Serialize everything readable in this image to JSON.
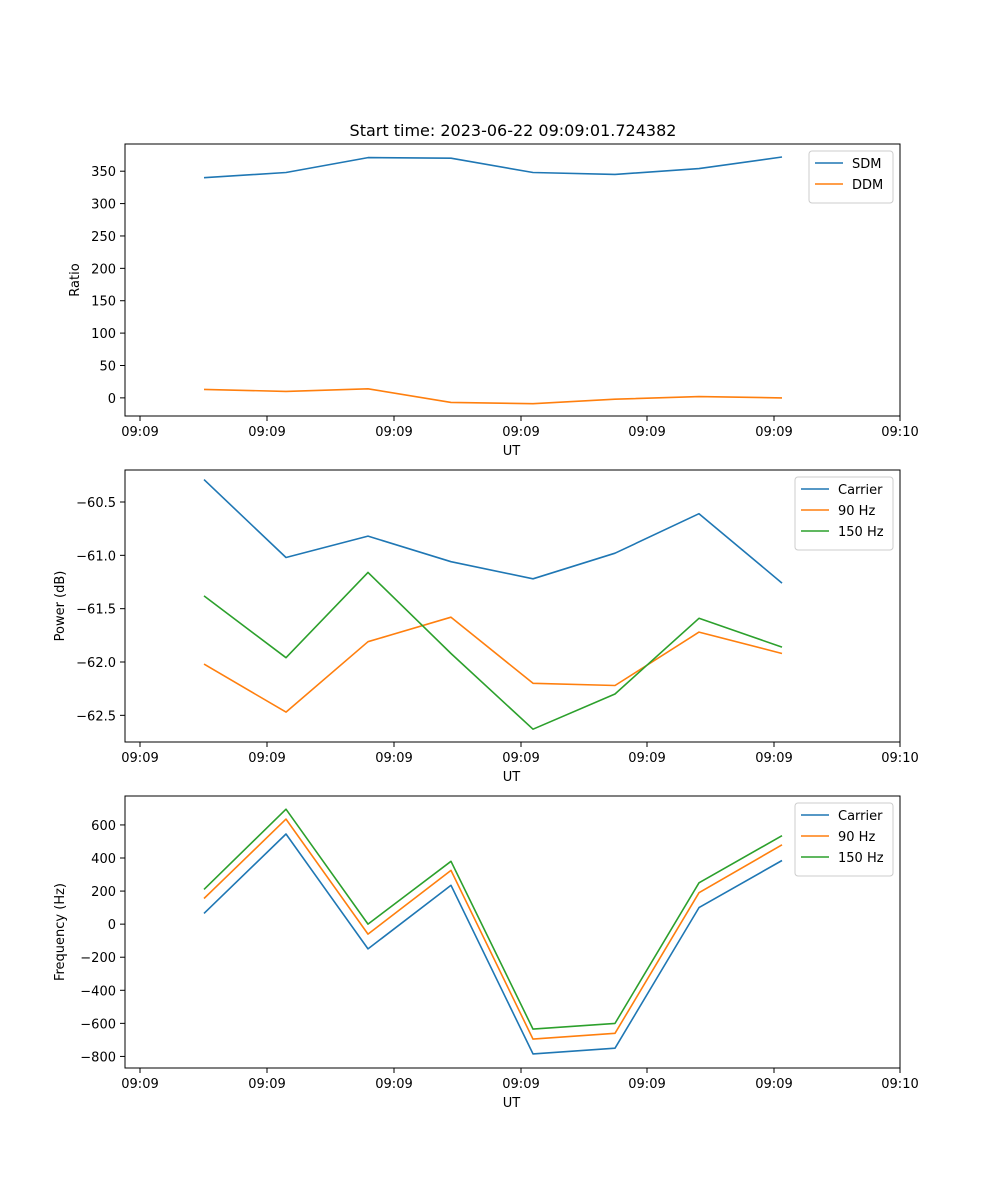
{
  "figure": {
    "title": "Start time: 2023-06-22 09:09:01.724382"
  },
  "colors": {
    "blue": "#1f77b4",
    "orange": "#ff7f0e",
    "green": "#2ca02c"
  },
  "chart_data": [
    {
      "type": "line",
      "title": "Start time: 2023-06-22 09:09:01.724382",
      "xlabel": "UT",
      "ylabel": "Ratio",
      "x_tick_labels": [
        "09:09",
        "09:09",
        "09:09",
        "09:09",
        "09:09",
        "09:09",
        "09:10"
      ],
      "y_ticks": [
        0,
        50,
        100,
        150,
        200,
        250,
        300,
        350
      ],
      "ylim": [
        -28,
        392
      ],
      "legend": "top-right",
      "series": [
        {
          "name": "SDM",
          "color": "#1f77b4",
          "values": [
            340,
            348,
            371,
            370,
            348,
            345,
            354,
            372
          ]
        },
        {
          "name": "DDM",
          "color": "#ff7f0e",
          "values": [
            13,
            10,
            14,
            -7,
            -9,
            -2,
            2,
            0
          ]
        }
      ]
    },
    {
      "type": "line",
      "xlabel": "UT",
      "ylabel": "Power (dB)",
      "x_tick_labels": [
        "09:09",
        "09:09",
        "09:09",
        "09:09",
        "09:09",
        "09:09",
        "09:10"
      ],
      "y_ticks": [
        -62.5,
        -62.0,
        -61.5,
        -61.0,
        -60.5
      ],
      "y_tick_labels": [
        "−62.5",
        "−62.0",
        "−61.5",
        "−61.0",
        "−60.5"
      ],
      "ylim": [
        -62.75,
        -60.2
      ],
      "legend": "top-right",
      "series": [
        {
          "name": "Carrier",
          "color": "#1f77b4",
          "values": [
            -60.29,
            -61.02,
            -60.82,
            -61.06,
            -61.22,
            -60.98,
            -60.61,
            -61.26
          ]
        },
        {
          "name": "90 Hz",
          "color": "#ff7f0e",
          "values": [
            -62.02,
            -62.47,
            -61.81,
            -61.58,
            -62.2,
            -62.22,
            -61.72,
            -61.92
          ]
        },
        {
          "name": "150 Hz",
          "color": "#2ca02c",
          "values": [
            -61.38,
            -61.96,
            -61.16,
            -61.92,
            -62.63,
            -62.3,
            -61.59,
            -61.86
          ]
        }
      ]
    },
    {
      "type": "line",
      "xlabel": "UT",
      "ylabel": "Frequency (Hz)",
      "x_tick_labels": [
        "09:09",
        "09:09",
        "09:09",
        "09:09",
        "09:09",
        "09:09",
        "09:10"
      ],
      "y_ticks": [
        -800,
        -600,
        -400,
        -200,
        0,
        200,
        400,
        600
      ],
      "y_tick_labels": [
        "−800",
        "−600",
        "−400",
        "−200",
        "0",
        "200",
        "400",
        "600"
      ],
      "ylim": [
        -870,
        775
      ],
      "legend": "top-right",
      "series": [
        {
          "name": "Carrier",
          "color": "#1f77b4",
          "values": [
            65,
            545,
            -150,
            235,
            -785,
            -750,
            100,
            385
          ]
        },
        {
          "name": "90 Hz",
          "color": "#ff7f0e",
          "values": [
            155,
            635,
            -60,
            325,
            -695,
            -660,
            190,
            480
          ]
        },
        {
          "name": "150 Hz",
          "color": "#2ca02c",
          "values": [
            210,
            695,
            0,
            380,
            -635,
            -600,
            250,
            535
          ]
        }
      ]
    }
  ]
}
